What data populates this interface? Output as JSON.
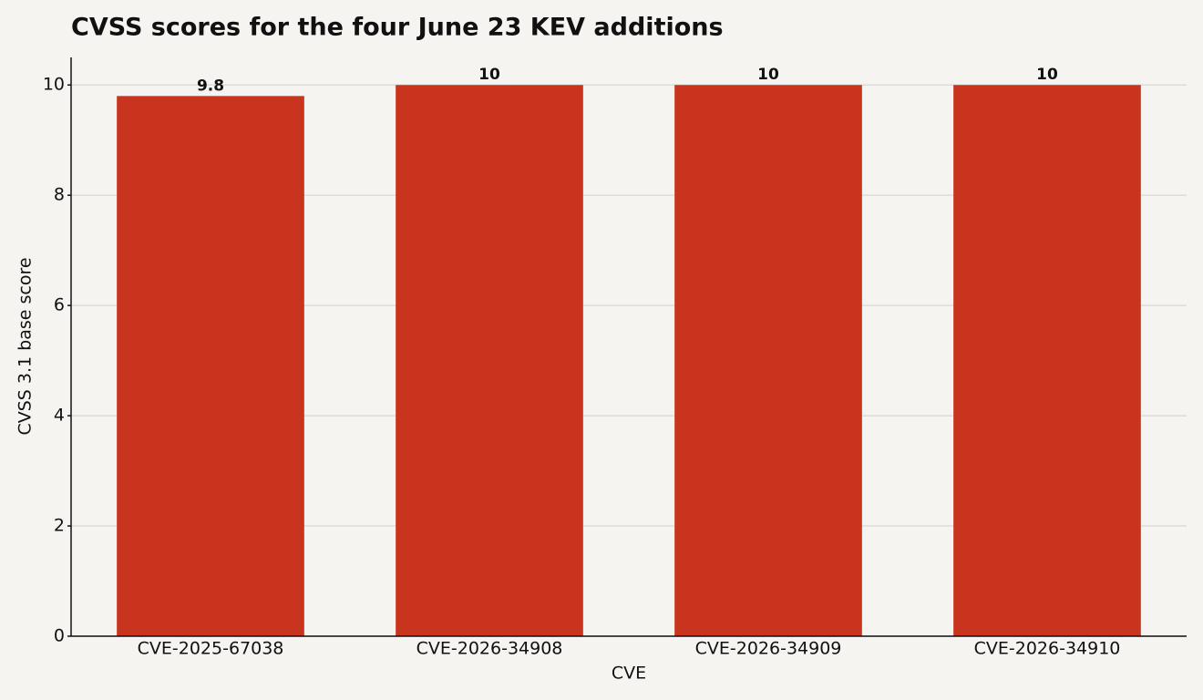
{
  "chart_data": {
    "type": "bar",
    "title": "CVSS scores for the four June 23 KEV additions",
    "x_label": "CVE",
    "y_label": "CVSS 3.1 base score",
    "categories": [
      "CVE-2025-67038",
      "CVE-2026-34908",
      "CVE-2026-34909",
      "CVE-2026-34910"
    ],
    "values": [
      9.8,
      10,
      10,
      10
    ],
    "color": "#c9341f",
    "ylim": [
      0,
      10.5
    ],
    "yticks": [
      0,
      2,
      4,
      6,
      8,
      10
    ],
    "grid": true
  }
}
